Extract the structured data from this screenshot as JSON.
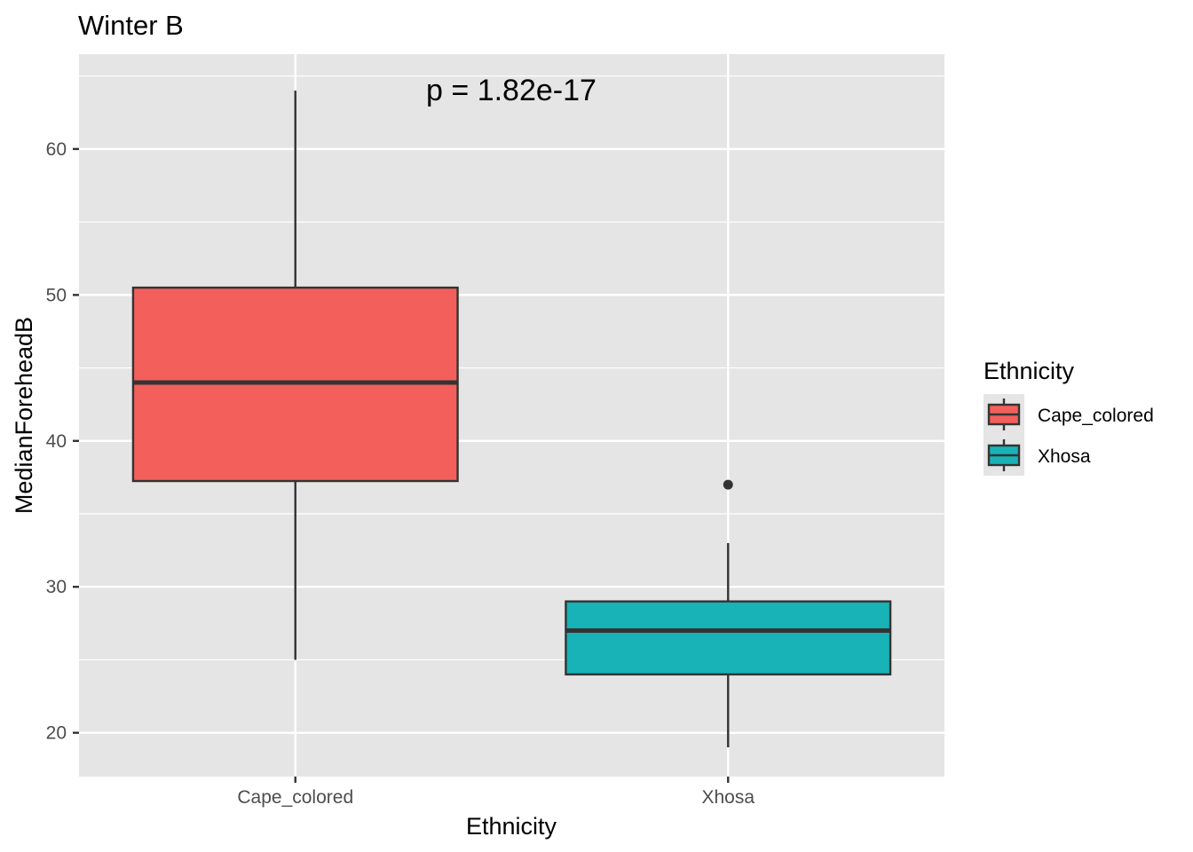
{
  "chart_data": {
    "type": "boxplot",
    "title": "Winter B",
    "xlabel": "Ethnicity",
    "ylabel": "MedianForeheadB",
    "ylim": [
      17,
      66.5
    ],
    "yticks": [
      20,
      30,
      40,
      50,
      60
    ],
    "ytick_labels": [
      "20",
      "30",
      "40",
      "50",
      "60"
    ],
    "grid": true,
    "annotation": "p = 1.82e-17",
    "categories": [
      "Cape_colored",
      "Xhosa"
    ],
    "boxes": [
      {
        "category": "Cape_colored",
        "color": "#F35F5B",
        "whisker_low": 25,
        "q1": 37.25,
        "median": 44,
        "q3": 50.5,
        "whisker_high": 64,
        "outliers": []
      },
      {
        "category": "Xhosa",
        "color": "#18B3B6",
        "whisker_low": 19,
        "q1": 24,
        "median": 27,
        "q3": 29,
        "whisker_high": 33,
        "outliers": [
          37
        ]
      }
    ],
    "legend": {
      "title": "Ethnicity",
      "position": "right",
      "items": [
        {
          "label": "Cape_colored",
          "color": "#F35F5B"
        },
        {
          "label": "Xhosa",
          "color": "#18B3B6"
        }
      ]
    }
  }
}
